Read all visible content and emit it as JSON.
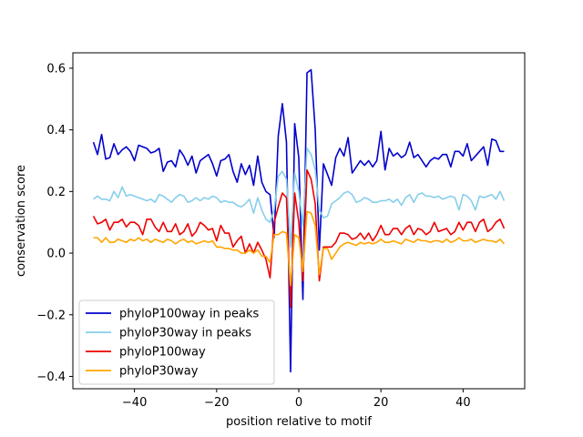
{
  "chart_data": {
    "type": "line",
    "title": "",
    "xlabel": "position relative to motif",
    "ylabel": "conservation score",
    "xlim": [
      -55,
      55
    ],
    "ylim": [
      -0.44,
      0.65
    ],
    "xticks": [
      -40,
      -20,
      0,
      20,
      40
    ],
    "yticks": [
      -0.4,
      -0.2,
      0.0,
      0.2,
      0.4,
      0.6
    ],
    "grid": false,
    "legend_position": "lower-left",
    "x": [
      -50,
      -49,
      -48,
      -47,
      -46,
      -45,
      -44,
      -43,
      -42,
      -41,
      -40,
      -39,
      -38,
      -37,
      -36,
      -35,
      -34,
      -33,
      -32,
      -31,
      -30,
      -29,
      -28,
      -27,
      -26,
      -25,
      -24,
      -23,
      -22,
      -21,
      -20,
      -19,
      -18,
      -17,
      -16,
      -15,
      -14,
      -13,
      -12,
      -11,
      -10,
      -9,
      -8,
      -7,
      -6,
      -5,
      -4,
      -3,
      -2,
      -1,
      0,
      1,
      2,
      3,
      4,
      5,
      6,
      7,
      8,
      9,
      10,
      11,
      12,
      13,
      14,
      15,
      16,
      17,
      18,
      19,
      20,
      21,
      22,
      23,
      24,
      25,
      26,
      27,
      28,
      29,
      30,
      31,
      32,
      33,
      34,
      35,
      36,
      37,
      38,
      39,
      40,
      41,
      42,
      43,
      44,
      45,
      46,
      47,
      48,
      49,
      50
    ],
    "series": [
      {
        "name": "phyloP100way in peaks",
        "color": "#0000cd",
        "values": [
          0.36,
          0.32,
          0.385,
          0.305,
          0.31,
          0.355,
          0.32,
          0.335,
          0.345,
          0.33,
          0.3,
          0.35,
          0.345,
          0.34,
          0.325,
          0.33,
          0.34,
          0.265,
          0.295,
          0.3,
          0.28,
          0.335,
          0.315,
          0.285,
          0.315,
          0.26,
          0.3,
          0.31,
          0.32,
          0.29,
          0.25,
          0.3,
          0.305,
          0.32,
          0.265,
          0.23,
          0.29,
          0.255,
          0.285,
          0.22,
          0.315,
          0.23,
          0.2,
          0.19,
          0.05,
          0.38,
          0.485,
          0.36,
          -0.385,
          0.42,
          0.31,
          -0.15,
          0.585,
          0.595,
          0.4,
          0.01,
          0.29,
          0.255,
          0.22,
          0.31,
          0.34,
          0.315,
          0.375,
          0.26,
          0.28,
          0.3,
          0.285,
          0.3,
          0.28,
          0.3,
          0.395,
          0.27,
          0.34,
          0.315,
          0.325,
          0.31,
          0.32,
          0.36,
          0.31,
          0.32,
          0.3,
          0.28,
          0.3,
          0.31,
          0.305,
          0.32,
          0.32,
          0.28,
          0.33,
          0.33,
          0.315,
          0.355,
          0.3,
          0.315,
          0.33,
          0.345,
          0.285,
          0.37,
          0.365,
          0.33,
          0.33
        ]
      },
      {
        "name": "phyloP30way in peaks",
        "color": "#87ceeb",
        "values": [
          0.175,
          0.185,
          0.175,
          0.175,
          0.17,
          0.2,
          0.18,
          0.215,
          0.185,
          0.19,
          0.185,
          0.18,
          0.175,
          0.17,
          0.175,
          0.165,
          0.19,
          0.185,
          0.175,
          0.165,
          0.18,
          0.19,
          0.185,
          0.165,
          0.17,
          0.18,
          0.17,
          0.18,
          0.175,
          0.185,
          0.18,
          0.165,
          0.17,
          0.165,
          0.165,
          0.155,
          0.15,
          0.16,
          0.175,
          0.13,
          0.18,
          0.14,
          0.11,
          0.1,
          0.14,
          0.25,
          0.265,
          0.24,
          0.02,
          0.26,
          0.2,
          0.09,
          0.34,
          0.32,
          0.27,
          0.14,
          0.115,
          0.12,
          0.16,
          0.17,
          0.18,
          0.195,
          0.2,
          0.19,
          0.165,
          0.17,
          0.18,
          0.175,
          0.165,
          0.165,
          0.17,
          0.17,
          0.175,
          0.165,
          0.175,
          0.155,
          0.18,
          0.19,
          0.165,
          0.19,
          0.195,
          0.185,
          0.185,
          0.18,
          0.185,
          0.175,
          0.18,
          0.185,
          0.18,
          0.14,
          0.19,
          0.185,
          0.17,
          0.14,
          0.185,
          0.18,
          0.185,
          0.19,
          0.175,
          0.2,
          0.17
        ]
      },
      {
        "name": "phyloP100way",
        "color": "#ee0000",
        "values": [
          0.12,
          0.095,
          0.1,
          0.11,
          0.075,
          0.1,
          0.1,
          0.11,
          0.085,
          0.1,
          0.1,
          0.09,
          0.06,
          0.11,
          0.11,
          0.085,
          0.07,
          0.1,
          0.07,
          0.07,
          0.095,
          0.06,
          0.07,
          0.095,
          0.055,
          0.07,
          0.1,
          0.09,
          0.075,
          0.08,
          0.04,
          0.09,
          0.065,
          0.065,
          0.02,
          0.04,
          0.055,
          0.0,
          0.03,
          0.0,
          0.035,
          0.01,
          -0.02,
          -0.08,
          0.1,
          0.15,
          0.195,
          0.18,
          -0.175,
          0.195,
          0.1,
          -0.09,
          0.27,
          0.24,
          0.16,
          -0.09,
          0.02,
          0.02,
          0.02,
          0.035,
          0.065,
          0.065,
          0.06,
          0.045,
          0.05,
          0.065,
          0.045,
          0.065,
          0.04,
          0.06,
          0.09,
          0.06,
          0.06,
          0.08,
          0.08,
          0.06,
          0.08,
          0.09,
          0.06,
          0.08,
          0.075,
          0.06,
          0.07,
          0.1,
          0.07,
          0.075,
          0.08,
          0.06,
          0.07,
          0.1,
          0.075,
          0.1,
          0.1,
          0.07,
          0.1,
          0.11,
          0.07,
          0.08,
          0.1,
          0.11,
          0.08
        ]
      },
      {
        "name": "phyloP30way",
        "color": "#ffa500",
        "values": [
          0.05,
          0.05,
          0.035,
          0.05,
          0.035,
          0.035,
          0.045,
          0.04,
          0.035,
          0.045,
          0.04,
          0.05,
          0.04,
          0.045,
          0.035,
          0.045,
          0.04,
          0.035,
          0.045,
          0.04,
          0.03,
          0.04,
          0.045,
          0.035,
          0.04,
          0.03,
          0.035,
          0.04,
          0.035,
          0.04,
          0.02,
          0.02,
          0.015,
          0.015,
          0.01,
          0.01,
          0.0,
          0.0,
          0.01,
          0.0,
          0.01,
          -0.01,
          -0.01,
          -0.03,
          0.06,
          0.06,
          0.07,
          0.065,
          -0.105,
          0.06,
          0.05,
          -0.06,
          0.135,
          0.13,
          0.09,
          -0.07,
          0.015,
          0.015,
          -0.02,
          0.0,
          0.02,
          0.03,
          0.035,
          0.03,
          0.025,
          0.035,
          0.03,
          0.035,
          0.03,
          0.035,
          0.045,
          0.035,
          0.035,
          0.04,
          0.035,
          0.03,
          0.045,
          0.04,
          0.035,
          0.045,
          0.04,
          0.04,
          0.035,
          0.04,
          0.04,
          0.035,
          0.045,
          0.035,
          0.04,
          0.05,
          0.04,
          0.04,
          0.045,
          0.035,
          0.04,
          0.045,
          0.04,
          0.04,
          0.035,
          0.045,
          0.03
        ]
      }
    ]
  }
}
